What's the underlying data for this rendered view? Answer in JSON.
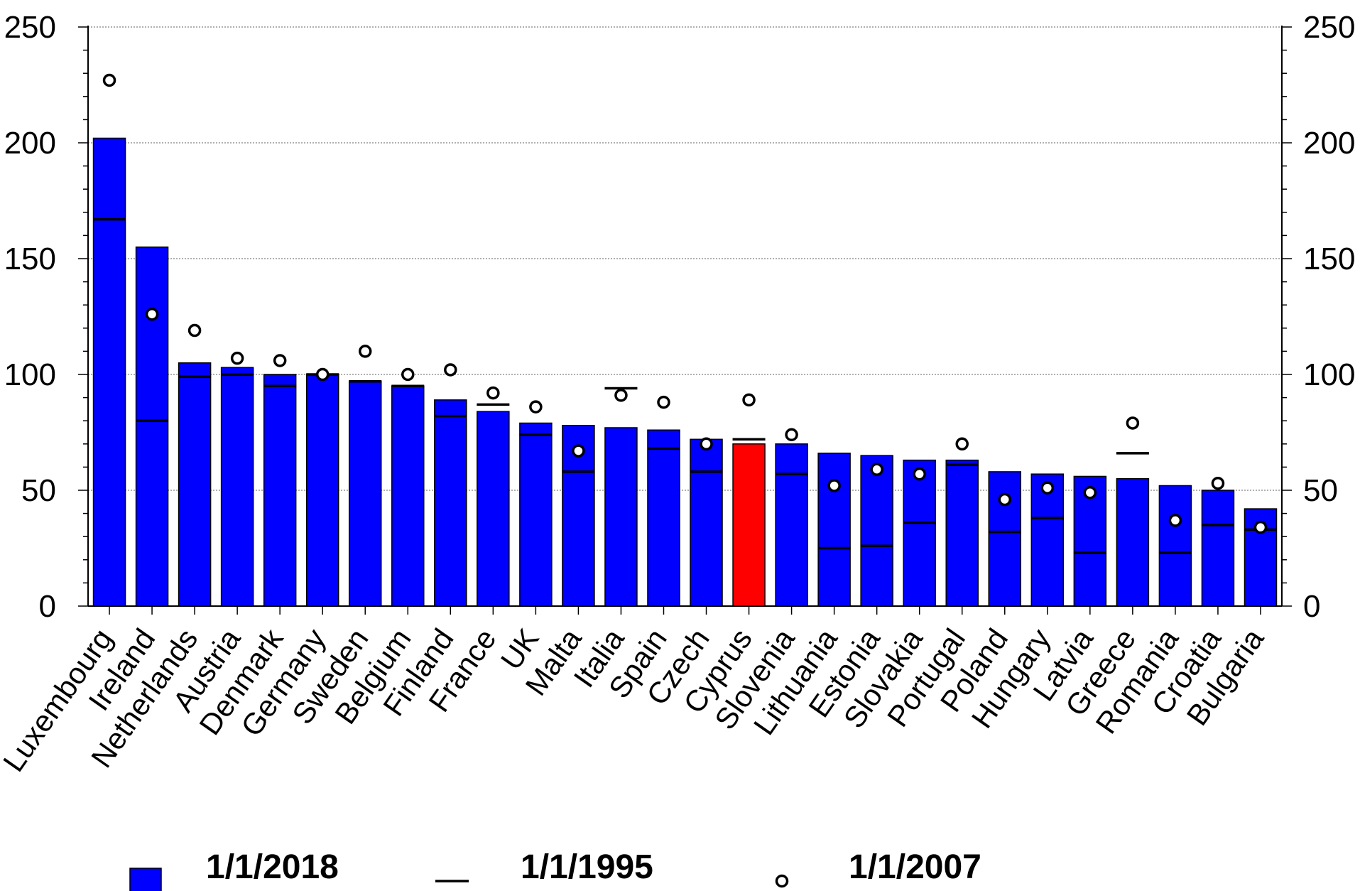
{
  "chart_data": {
    "type": "bar",
    "categories": [
      "Luxembourg",
      "Ireland",
      "Netherlands",
      "Austria",
      "Denmark",
      "Germany",
      "Sweden",
      "Belgium",
      "Finland",
      "France",
      "UK",
      "Malta",
      "Italia",
      "Spain",
      "Czech",
      "Cyprus",
      "Slovenia",
      "Lithuania",
      "Estonia",
      "Slovakia",
      "Portugal",
      "Poland",
      "Hungary",
      "Latvia",
      "Greece",
      "Romania",
      "Croatia",
      "Bulgaria"
    ],
    "highlight_category": "Cyprus",
    "series": [
      {
        "name": "1/1/2018",
        "marker": "bar",
        "values": [
          202,
          155,
          105,
          103,
          100,
          100,
          97,
          95,
          89,
          84,
          79,
          78,
          77,
          76,
          72,
          70,
          70,
          66,
          65,
          63,
          63,
          58,
          57,
          56,
          55,
          52,
          50,
          42
        ]
      },
      {
        "name": "1/1/1995",
        "marker": "dash",
        "values": [
          167,
          80,
          99,
          100,
          95,
          100,
          97,
          95,
          82,
          87,
          74,
          58,
          94,
          68,
          58,
          72,
          57,
          25,
          26,
          36,
          61,
          32,
          38,
          23,
          66,
          23,
          35,
          33
        ]
      },
      {
        "name": "1/1/2007",
        "marker": "circle",
        "values": [
          227,
          126,
          119,
          107,
          106,
          100,
          110,
          100,
          102,
          92,
          86,
          67,
          91,
          88,
          70,
          89,
          74,
          52,
          59,
          57,
          70,
          46,
          51,
          49,
          79,
          37,
          53,
          34
        ]
      }
    ],
    "ylim": [
      0,
      250
    ],
    "yticks": [
      "0",
      "50",
      "100",
      "150",
      "200",
      "250"
    ],
    "grid": true,
    "legend_position": "bottom",
    "colors": {
      "bar": "#0000ff",
      "highlight": "#ff0000",
      "outline": "#000000",
      "grid": "#808080"
    }
  }
}
